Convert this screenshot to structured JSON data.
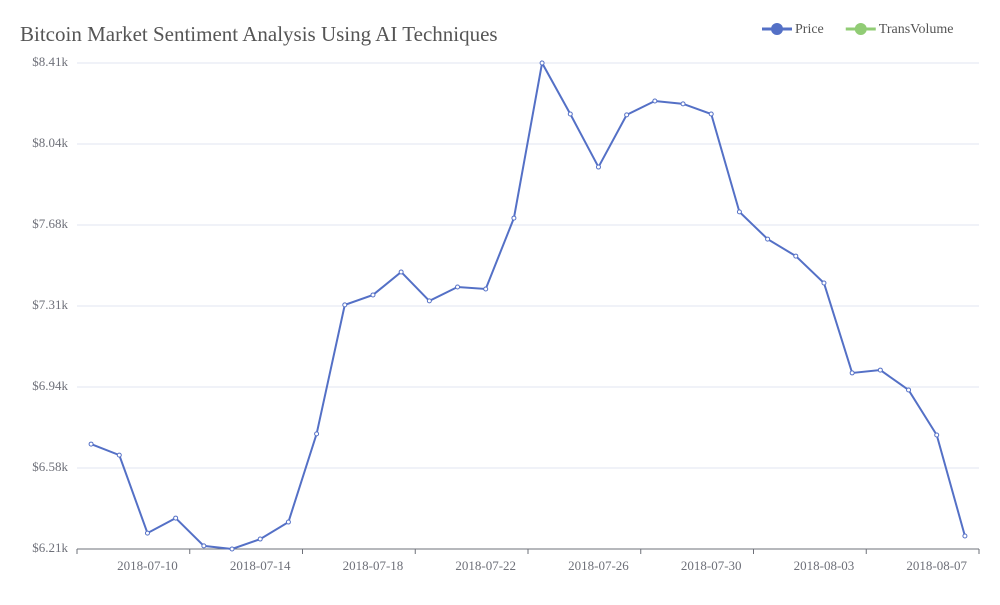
{
  "chart_data": {
    "type": "line",
    "title": "Bitcoin Market Sentiment Analysis Using AI Techniques",
    "categories": [
      null,
      null,
      "2018-07-10",
      null,
      null,
      null,
      "2018-07-14",
      null,
      null,
      null,
      "2018-07-18",
      null,
      null,
      null,
      "2018-07-22",
      null,
      null,
      null,
      "2018-07-26",
      null,
      null,
      null,
      "2018-07-30",
      null,
      null,
      null,
      "2018-08-03",
      null,
      null,
      null,
      "2018-08-07",
      null
    ],
    "series": [
      {
        "name": "Price",
        "color": "#5470c6",
        "values": [
          6685,
          6635,
          6282,
          6350,
          6224,
          6210,
          6255,
          6332,
          6731,
          7315,
          7360,
          7464,
          7333,
          7396,
          7387,
          7708,
          8410,
          8179,
          7939,
          8175,
          8238,
          8225,
          8179,
          7736,
          7613,
          7536,
          7414,
          7007,
          7020,
          6930,
          6726,
          6269
        ]
      },
      {
        "name": "TransVolume",
        "color": "#91cc75"
      }
    ],
    "ylim": [
      6210,
      8410
    ],
    "yticks": [
      {
        "value": 6210,
        "label": "$6.21k"
      },
      {
        "value": 6576.67,
        "label": "$6.58k"
      },
      {
        "value": 6943.33,
        "label": "$6.94k"
      },
      {
        "value": 7310,
        "label": "$7.31k"
      },
      {
        "value": 7676.67,
        "label": "$7.68k"
      },
      {
        "value": 8043.33,
        "label": "$8.04k"
      },
      {
        "value": 8410,
        "label": "$8.41k"
      }
    ],
    "grid": true
  }
}
